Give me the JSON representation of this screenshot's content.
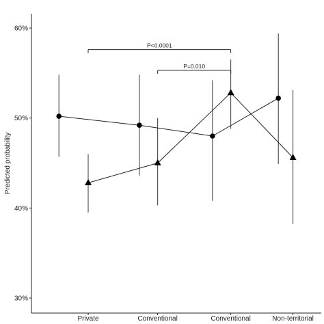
{
  "chart_data": {
    "type": "line",
    "title": "",
    "xlabel": "",
    "ylabel": "Predicted probability",
    "categories": [
      "Private",
      "Conventional",
      "Conventional",
      "Non-territorial"
    ],
    "x_positions": [
      1.0,
      1.95,
      2.95,
      3.8
    ],
    "ylim": [
      0.3,
      0.6
    ],
    "y_ticks": [
      0.3,
      0.4,
      0.5,
      0.6
    ],
    "y_tick_labels": [
      "30%",
      "40%",
      "50%",
      "60%"
    ],
    "grid": false,
    "legend": "none",
    "series": [
      {
        "marker": "circle",
        "x": [
          0.6,
          1.7,
          2.7,
          3.6
        ],
        "values": [
          0.502,
          0.492,
          0.48,
          0.522
        ],
        "ci_low": [
          0.457,
          0.436,
          0.408,
          0.449
        ],
        "ci_high": [
          0.548,
          0.548,
          0.542,
          0.594
        ]
      },
      {
        "marker": "triangle",
        "x": [
          1.0,
          1.95,
          2.95,
          3.8
        ],
        "values": [
          0.428,
          0.45,
          0.528,
          0.456
        ],
        "ci_low": [
          0.395,
          0.403,
          0.488,
          0.382
        ],
        "ci_high": [
          0.46,
          0.5,
          0.565,
          0.531
        ]
      }
    ],
    "annotations": [
      {
        "label": "P<0.0001",
        "x_from": 1.0,
        "x_to": 2.95,
        "y": 0.576
      },
      {
        "label": "P=0.010",
        "x_from": 1.95,
        "x_to": 2.95,
        "y": 0.553
      }
    ]
  }
}
